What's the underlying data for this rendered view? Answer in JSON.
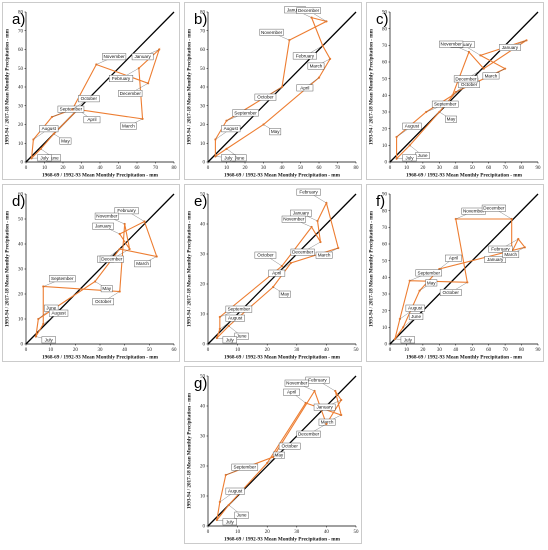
{
  "style": {
    "series_color": "#ed7d31",
    "identity_color": "#000000",
    "panel_border": "#bfbfbf",
    "callout_border": "#555555"
  },
  "xlabel": "1968-69 / 1992-93 Mean Monthly Precipitation - mm",
  "ylabel": "1993-94 / 2017-18 Mean Monthly Precipitation - mm",
  "chart_data": [
    {
      "label": "a)",
      "type": "line",
      "lim": 80,
      "ticks": [
        0,
        10,
        20,
        30,
        40,
        50,
        60,
        70,
        80
      ],
      "xlabel": "1968-69 / 1992-93 Mean Monthly Precipitation - mm",
      "ylabel": "1993-94 / 2017-18 Mean Monthly Precipitation - mm",
      "points": [
        {
          "month": "January",
          "x": 72,
          "y": 60
        },
        {
          "month": "February",
          "x": 61,
          "y": 50
        },
        {
          "month": "March",
          "x": 63,
          "y": 23
        },
        {
          "month": "April",
          "x": 28,
          "y": 28
        },
        {
          "month": "May",
          "x": 15,
          "y": 15
        },
        {
          "month": "June",
          "x": 8,
          "y": 7
        },
        {
          "month": "July",
          "x": 3,
          "y": 2
        },
        {
          "month": "August",
          "x": 4,
          "y": 12
        },
        {
          "month": "September",
          "x": 14,
          "y": 24
        },
        {
          "month": "October",
          "x": 25,
          "y": 28
        },
        {
          "month": "November",
          "x": 38,
          "y": 52
        },
        {
          "month": "December",
          "x": 66,
          "y": 42
        }
      ]
    },
    {
      "label": "b)",
      "type": "line",
      "lim": 80,
      "ticks": [
        0,
        10,
        20,
        30,
        40,
        50,
        60,
        70,
        80
      ],
      "xlabel": "1968-69 / 1992-93 Mean Monthly Precipitation - mm",
      "ylabel": "1993-94 / 2017-18 Mean Monthly Precipitation - mm",
      "points": [
        {
          "month": "January",
          "x": 56,
          "y": 77
        },
        {
          "month": "February",
          "x": 62,
          "y": 62
        },
        {
          "month": "March",
          "x": 66,
          "y": 55
        },
        {
          "month": "April",
          "x": 60,
          "y": 45
        },
        {
          "month": "May",
          "x": 30,
          "y": 20
        },
        {
          "month": "June",
          "x": 10,
          "y": 7
        },
        {
          "month": "July",
          "x": 4,
          "y": 3
        },
        {
          "month": "August",
          "x": 4,
          "y": 12
        },
        {
          "month": "September",
          "x": 10,
          "y": 22
        },
        {
          "month": "October",
          "x": 40,
          "y": 40
        },
        {
          "month": "November",
          "x": 44,
          "y": 65
        },
        {
          "month": "December",
          "x": 64,
          "y": 75
        }
      ]
    },
    {
      "label": "c)",
      "type": "line",
      "lim": 90,
      "ticks": [
        0,
        10,
        20,
        30,
        40,
        50,
        60,
        70,
        80,
        90
      ],
      "xlabel": "1968-69 / 1992-93 Mean Monthly Precipitation - mm",
      "ylabel": "1993-94 / 2017-18 Mean Monthly Precipitation - mm",
      "points": [
        {
          "month": "January",
          "x": 83,
          "y": 73
        },
        {
          "month": "February",
          "x": 55,
          "y": 64
        },
        {
          "month": "March",
          "x": 70,
          "y": 56
        },
        {
          "month": "April",
          "x": 40,
          "y": 42
        },
        {
          "month": "May",
          "x": 30,
          "y": 30
        },
        {
          "month": "June",
          "x": 12,
          "y": 10
        },
        {
          "month": "July",
          "x": 4,
          "y": 2
        },
        {
          "month": "August",
          "x": 4,
          "y": 15
        },
        {
          "month": "September",
          "x": 22,
          "y": 30
        },
        {
          "month": "October",
          "x": 38,
          "y": 40
        },
        {
          "month": "November",
          "x": 48,
          "y": 66
        },
        {
          "month": "December",
          "x": 57,
          "y": 56
        }
      ]
    },
    {
      "label": "d)",
      "type": "line",
      "lim": 60,
      "ticks": [
        0,
        10,
        20,
        30,
        40,
        50,
        60
      ],
      "xlabel": "1968-69 / 1992-93 Mean Monthly Precipitation - mm",
      "ylabel": "1993-94 / 2017-18 Mean Monthly Precipitation - mm",
      "points": [
        {
          "month": "January",
          "x": 38,
          "y": 44
        },
        {
          "month": "February",
          "x": 48,
          "y": 49
        },
        {
          "month": "March",
          "x": 53,
          "y": 35
        },
        {
          "month": "April",
          "x": 38,
          "y": 38
        },
        {
          "month": "May",
          "x": 28,
          "y": 25
        },
        {
          "month": "June",
          "x": 5,
          "y": 10
        },
        {
          "month": "July",
          "x": 4,
          "y": 3
        },
        {
          "month": "August",
          "x": 7,
          "y": 8
        },
        {
          "month": "September",
          "x": 7,
          "y": 23
        },
        {
          "month": "October",
          "x": 38,
          "y": 21
        },
        {
          "month": "November",
          "x": 40,
          "y": 48
        },
        {
          "month": "December",
          "x": 42,
          "y": 38
        }
      ]
    },
    {
      "label": "e)",
      "type": "line",
      "lim": 50,
      "ticks": [
        0,
        10,
        20,
        30,
        40,
        50
      ],
      "xlabel": "1968-69 / 1992-93 Mean Monthly Precipitation - mm",
      "ylabel": "1993-94 / 2017-18 Mean Monthly Precipitation - mm",
      "points": [
        {
          "month": "January",
          "x": 37,
          "y": 41
        },
        {
          "month": "February",
          "x": 40,
          "y": 47
        },
        {
          "month": "March",
          "x": 44,
          "y": 32
        },
        {
          "month": "April",
          "x": 28,
          "y": 27
        },
        {
          "month": "May",
          "x": 22,
          "y": 19
        },
        {
          "month": "June",
          "x": 7,
          "y": 6
        },
        {
          "month": "July",
          "x": 3,
          "y": 2
        },
        {
          "month": "August",
          "x": 4,
          "y": 5
        },
        {
          "month": "September",
          "x": 4,
          "y": 9
        },
        {
          "month": "October",
          "x": 25,
          "y": 26
        },
        {
          "month": "November",
          "x": 35,
          "y": 39
        },
        {
          "month": "December",
          "x": 38,
          "y": 34
        }
      ]
    },
    {
      "label": "f)",
      "type": "line",
      "lim": 90,
      "ticks": [
        0,
        10,
        20,
        30,
        40,
        50,
        60,
        70,
        80,
        90
      ],
      "xlabel": "1968-69 / 1992-93 Mean Monthly Precipitation - mm",
      "ylabel": "1993-94 / 2017-18 Mean Monthly Precipitation - mm",
      "points": [
        {
          "month": "January",
          "x": 74,
          "y": 55
        },
        {
          "month": "February",
          "x": 78,
          "y": 63
        },
        {
          "month": "March",
          "x": 82,
          "y": 58
        },
        {
          "month": "April",
          "x": 30,
          "y": 45
        },
        {
          "month": "May",
          "x": 18,
          "y": 32
        },
        {
          "month": "June",
          "x": 8,
          "y": 10
        },
        {
          "month": "July",
          "x": 3,
          "y": 3
        },
        {
          "month": "August",
          "x": 6,
          "y": 15
        },
        {
          "month": "September",
          "x": 12,
          "y": 38
        },
        {
          "month": "October",
          "x": 47,
          "y": 37
        },
        {
          "month": "November",
          "x": 40,
          "y": 75
        },
        {
          "month": "December",
          "x": 74,
          "y": 75
        }
      ]
    },
    {
      "label": "g)",
      "type": "line",
      "lim": 50,
      "ticks": [
        0,
        10,
        20,
        30,
        40,
        50
      ],
      "xlabel": "1968-69 / 1992-93 Mean Monthly Precipitation - mm",
      "ylabel": "1993-94 / 2017-18 Mean Monthly Precipitation - mm",
      "points": [
        {
          "month": "January",
          "x": 45,
          "y": 42
        },
        {
          "month": "February",
          "x": 43,
          "y": 45
        },
        {
          "month": "March",
          "x": 45,
          "y": 37
        },
        {
          "month": "April",
          "x": 33,
          "y": 41
        },
        {
          "month": "May",
          "x": 20,
          "y": 21
        },
        {
          "month": "June",
          "x": 7,
          "y": 7
        },
        {
          "month": "July",
          "x": 3,
          "y": 2
        },
        {
          "month": "August",
          "x": 4,
          "y": 8
        },
        {
          "month": "September",
          "x": 6,
          "y": 17
        },
        {
          "month": "October",
          "x": 22,
          "y": 23
        },
        {
          "month": "November",
          "x": 36,
          "y": 45
        },
        {
          "month": "December",
          "x": 40,
          "y": 34
        }
      ]
    }
  ]
}
